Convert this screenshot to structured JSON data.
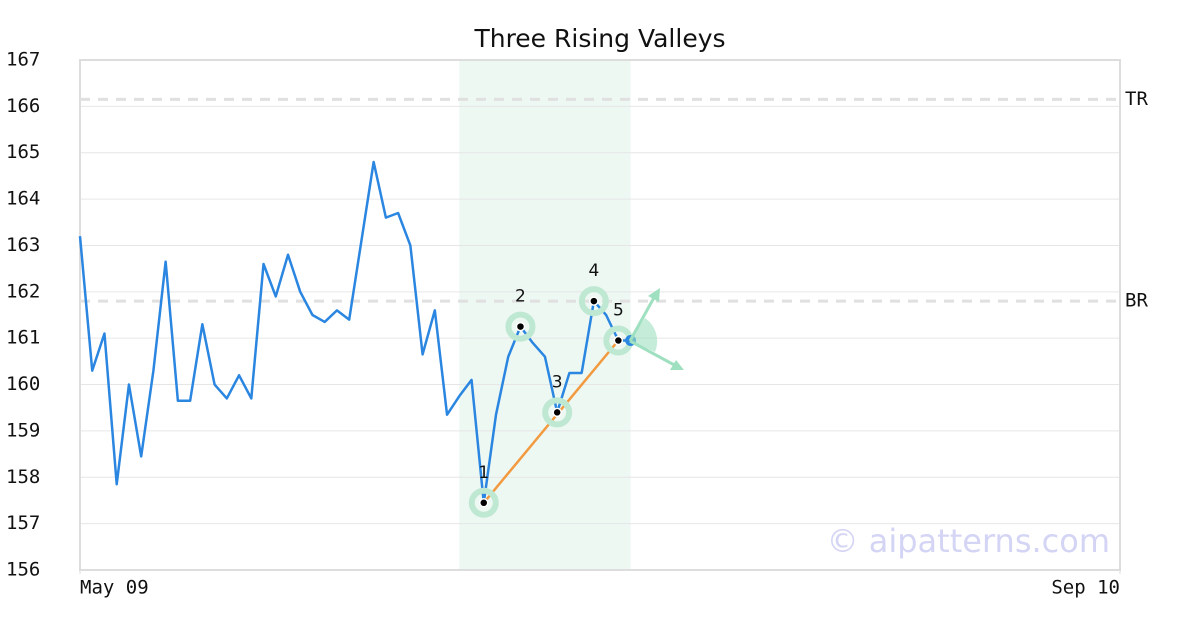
{
  "chart_data": {
    "type": "line",
    "title": "Three Rising Valleys",
    "watermark": "© aipatterns.com",
    "x": [
      0,
      1,
      2,
      3,
      4,
      5,
      6,
      7,
      8,
      9,
      10,
      11,
      12,
      13,
      14,
      15,
      16,
      17,
      18,
      19,
      20,
      21,
      22,
      23,
      24,
      25,
      26,
      27,
      28,
      29,
      30,
      31,
      32,
      33,
      34,
      35,
      36,
      37,
      38,
      39,
      40,
      41,
      42,
      43,
      44,
      45
    ],
    "values": [
      163.2,
      160.3,
      161.1,
      157.85,
      160.0,
      158.45,
      160.3,
      162.65,
      159.65,
      159.65,
      161.3,
      160.0,
      159.7,
      160.2,
      159.7,
      162.6,
      161.9,
      162.8,
      162.0,
      161.5,
      161.35,
      161.6,
      161.4,
      163.1,
      164.8,
      163.6,
      163.7,
      163.0,
      160.65,
      161.6,
      159.35,
      159.75,
      160.1,
      157.45,
      159.35,
      160.6,
      161.25,
      160.9,
      160.6,
      159.4,
      160.25,
      160.25,
      161.8,
      161.5,
      160.95,
      160.95
    ],
    "color": "#2a86e0",
    "xlim": [
      0,
      85
    ],
    "xticks": [
      {
        "value": 0,
        "label": "May 09"
      },
      {
        "value": 85,
        "label": "Sep 10"
      }
    ],
    "ylim": [
      156,
      167
    ],
    "yticks": [
      156,
      157,
      158,
      159,
      160,
      161,
      162,
      163,
      164,
      165,
      166,
      167
    ],
    "grid": true,
    "levels": [
      {
        "name": "TR",
        "value": 166.15
      },
      {
        "name": "BR",
        "value": 161.8
      }
    ],
    "highlight": [
      31,
      45
    ],
    "pattern_labels": [
      "1",
      "2",
      "3",
      "4",
      "5"
    ],
    "pattern_indices": [
      33,
      36,
      39,
      42,
      44
    ],
    "trend_color": "#f29a3f"
  }
}
